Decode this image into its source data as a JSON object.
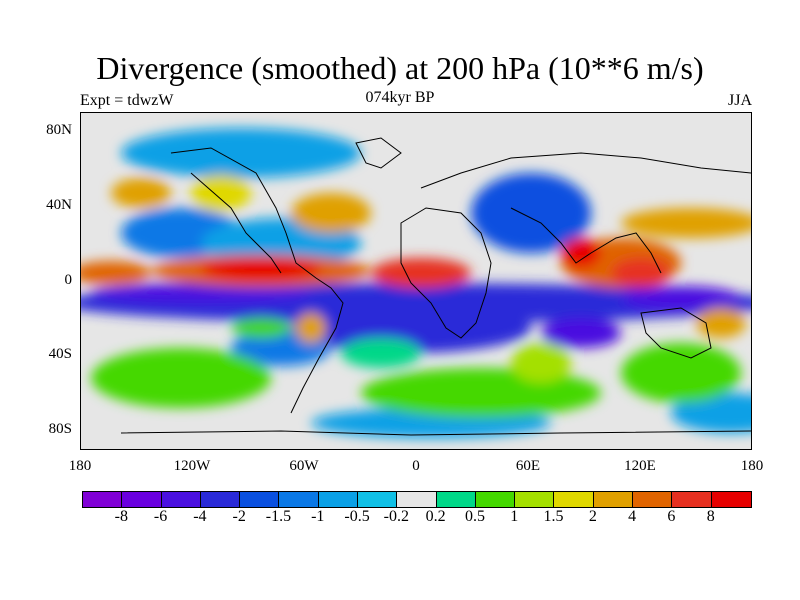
{
  "title": "Divergence (smoothed) at 200 hPa (10**6 m/s)",
  "subtitle_left": "Expt = tdwzW",
  "subtitle_center": "074kyr BP",
  "subtitle_right": "JJA",
  "lat_labels": [
    "80N",
    "40N",
    "0",
    "40S",
    "80S"
  ],
  "lon_labels": [
    "180",
    "120W",
    "60W",
    "0",
    "60E",
    "120E",
    "180"
  ],
  "colorbar_labels": [
    "-8",
    "-6",
    "-4",
    "-2",
    "-1.5",
    "-1",
    "-0.5",
    "-0.2",
    "0.2",
    "0.5",
    "1",
    "1.5",
    "2",
    "4",
    "6",
    "8"
  ],
  "colorbar_colors": [
    "#8000d6",
    "#6a00e0",
    "#4a10e0",
    "#2a2ad8",
    "#0a50e0",
    "#0a78e6",
    "#0aa0e6",
    "#10c0e6",
    "#e6e6e6",
    "#00d888",
    "#44d800",
    "#a4e000",
    "#e0d800",
    "#e0a000",
    "#e06400",
    "#e63020",
    "#e60000"
  ]
}
